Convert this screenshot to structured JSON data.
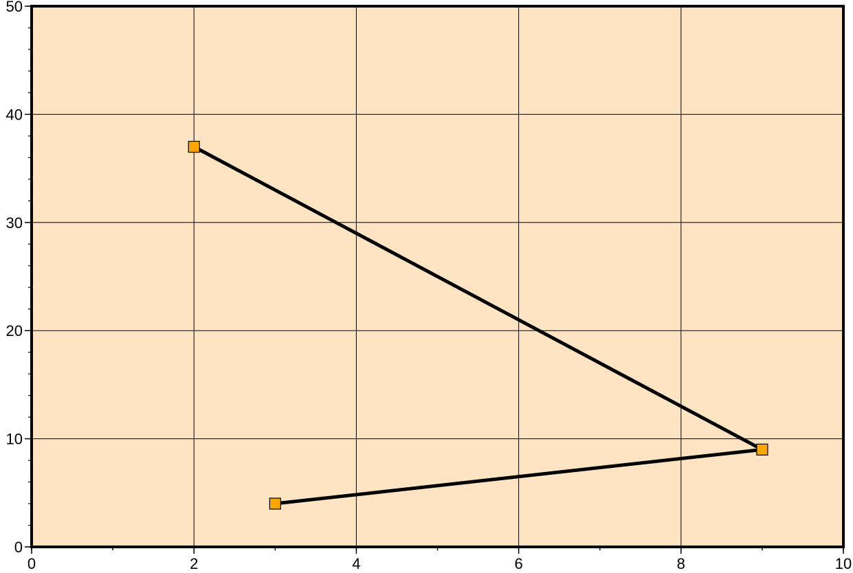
{
  "chart_data": {
    "type": "line",
    "title": "",
    "xlabel": "",
    "ylabel": "",
    "xlim": [
      0,
      10
    ],
    "ylim": [
      0,
      50
    ],
    "x_major_ticks": [
      0,
      2,
      4,
      6,
      8,
      10
    ],
    "x_minor_step": 1,
    "y_major_ticks": [
      0,
      10,
      20,
      30,
      40,
      50
    ],
    "y_minor_step": 2,
    "grid": true,
    "background_color": "#ffe4c4",
    "line_color": "#000000",
    "marker": "square",
    "marker_color": "#ffa500",
    "series": [
      {
        "x": [
          2,
          9,
          3
        ],
        "y": [
          37,
          9,
          4
        ]
      }
    ]
  }
}
